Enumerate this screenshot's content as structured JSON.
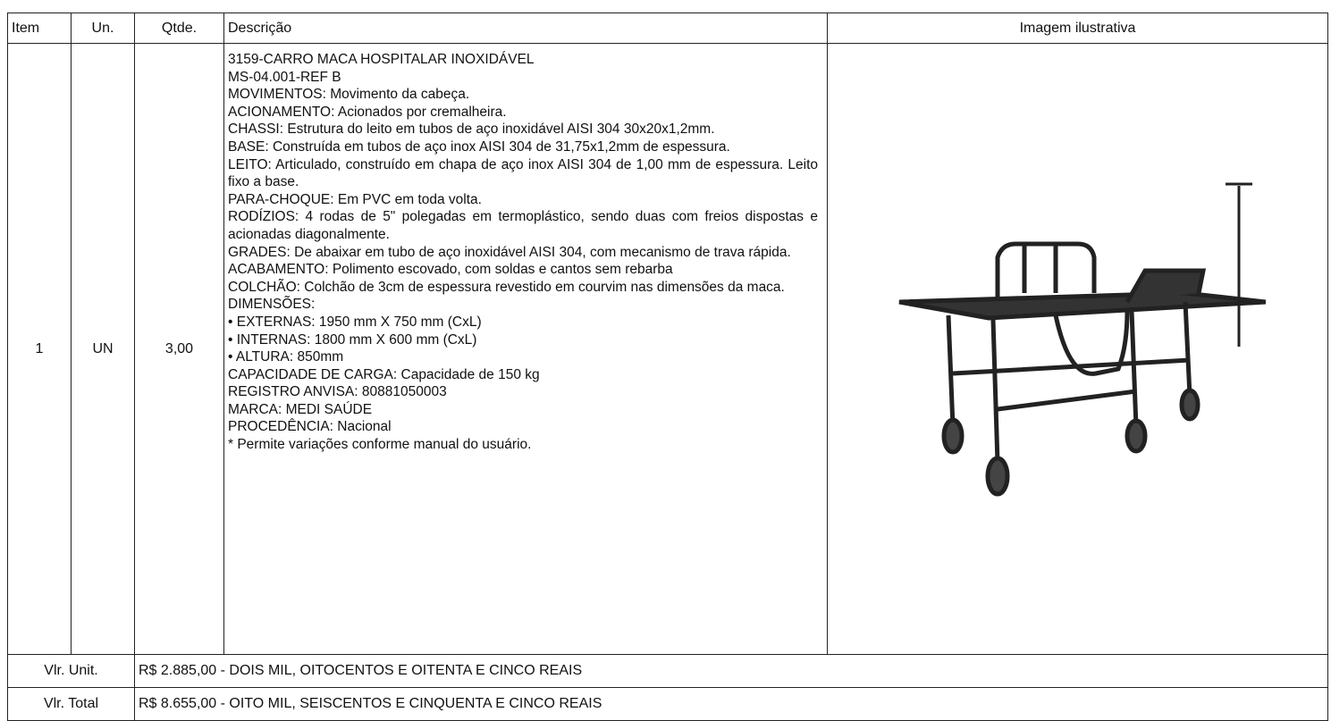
{
  "table": {
    "header": [
      "Item",
      "Un.",
      "Qtde.",
      "Descrição",
      "Imagem ilustrativa"
    ],
    "rows": [
      [
        "1",
        "UN",
        "3,00"
      ]
    ],
    "description": [
      "3159-CARRO MACA HOSPITALAR INOXIDÁVEL",
      "MS-04.001-REF B",
      "MOVIMENTOS: Movimento da cabeça.",
      "ACIONAMENTO: Acionados por cremalheira.",
      "CHASSI: Estrutura do leito em tubos de aço inoxidável AISI 304 30x20x1,2mm.",
      "BASE: Construída em tubos de aço inox AISI 304 de 31,75x1,2mm de espessura.",
      "LEITO: Articulado, construído em chapa de aço inox AISI 304 de 1,00 mm de espessura. Leito fixo a base.",
      "PARA-CHOQUE: Em PVC em toda volta.",
      "RODÍZIOS: 4 rodas de 5\" polegadas em termoplástico, sendo duas com freios dispostas e acionadas diagonalmente.",
      "GRADES: De abaixar em tubo de aço inoxidável AISI 304, com mecanismo de trava rápida.",
      "ACABAMENTO: Polimento escovado, com soldas e cantos sem rebarba",
      "COLCHÃO: Colchão de 3cm de espessura revestido em courvim nas dimensões da maca.",
      "DIMENSÕES:",
      "• EXTERNAS: 1950 mm X 750 mm (CxL)",
      "• INTERNAS: 1800 mm X 600 mm (CxL)",
      "• ALTURA: 850mm",
      "CAPACIDADE DE CARGA: Capacidade de 150 kg",
      "REGISTRO ANVISA: 80881050003",
      "MARCA: MEDI SAÚDE",
      "PROCEDÊNCIA: Nacional",
      "* Permite variações conforme manual do usuário."
    ],
    "footer": [
      [
        "Vlr. Unit.",
        "R$ 2.885,00 - DOIS MIL, OITOCENTOS E OITENTA E CINCO REAIS"
      ],
      [
        "Vlr. Total",
        "R$ 8.655,00 - OITO MIL, SEISCENTOS E CINQUENTA E CINCO REAIS"
      ]
    ]
  }
}
